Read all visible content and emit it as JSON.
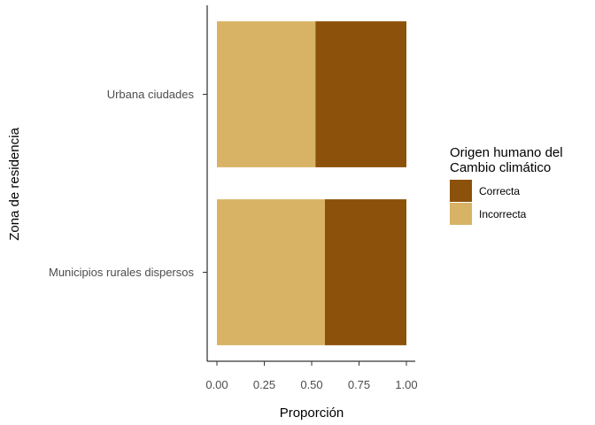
{
  "chart_data": {
    "type": "bar",
    "orientation": "horizontal",
    "stacked": true,
    "categories": [
      "Urbana ciudades",
      "Municipios rurales dispersos"
    ],
    "series": [
      {
        "name": "Incorrecta",
        "color": "#D8B365",
        "values": [
          0.52,
          0.57
        ]
      },
      {
        "name": "Correcta",
        "color": "#8C510A",
        "values": [
          0.48,
          0.43
        ]
      }
    ],
    "xlabel": "Proporción",
    "ylabel": "Zona de residencia",
    "xlim": [
      0,
      1
    ],
    "xticks": [
      "0.00",
      "0.25",
      "0.50",
      "0.75",
      "1.00"
    ],
    "grid": false,
    "legend": {
      "title_lines": [
        "Origen humano del",
        "Cambio climático"
      ],
      "placement": "right",
      "items": [
        {
          "label": "Correcta",
          "color": "#8C510A"
        },
        {
          "label": "Incorrecta",
          "color": "#D8B365"
        }
      ]
    }
  }
}
